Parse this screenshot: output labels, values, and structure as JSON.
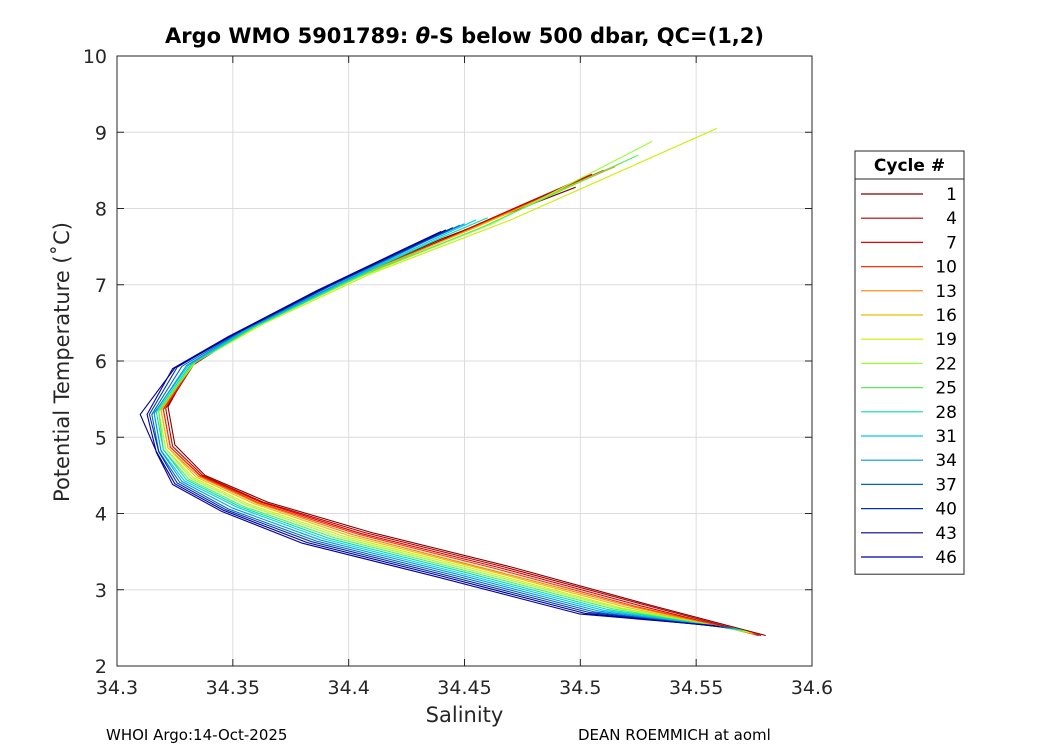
{
  "chart_data": {
    "type": "line",
    "title_prefix": "Argo WMO 5901789: ",
    "title_theta": "θ",
    "title_suffix": "-S below 500 dbar,  QC=(1,2)",
    "xlabel": "Salinity",
    "ylabel": "Potential Temperature (˚C)",
    "xlim": [
      34.3,
      34.6
    ],
    "ylim": [
      2,
      10
    ],
    "x_ticks": [
      "34.3",
      "34.35",
      "34.4",
      "34.45",
      "34.5",
      "34.55",
      "34.6"
    ],
    "y_ticks": [
      "2",
      "3",
      "4",
      "5",
      "6",
      "7",
      "8",
      "9",
      "10"
    ],
    "grid": true,
    "legend_title": "Cycle #",
    "legend_position": "outside-right",
    "series": [
      {
        "name": "1",
        "color": "#800000",
        "x": [
          34.498,
          34.44,
          34.395,
          34.355,
          34.332,
          34.322,
          34.325,
          34.338,
          34.365,
          34.41,
          34.47,
          34.53,
          34.58
        ],
        "y": [
          8.28,
          7.6,
          7.0,
          6.4,
          5.95,
          5.4,
          4.9,
          4.5,
          4.15,
          3.75,
          3.3,
          2.8,
          2.4
        ]
      },
      {
        "name": "4",
        "color": "#b30000",
        "x": [
          34.505,
          34.445,
          34.398,
          34.357,
          34.333,
          34.321,
          34.324,
          34.337,
          34.363,
          34.407,
          34.467,
          34.528,
          34.578
        ],
        "y": [
          8.45,
          7.65,
          7.02,
          6.42,
          5.95,
          5.38,
          4.88,
          4.5,
          4.15,
          3.75,
          3.3,
          2.8,
          2.4
        ]
      },
      {
        "name": "7",
        "color": "#e60000",
        "x": [
          34.51,
          34.448,
          34.4,
          34.358,
          34.333,
          34.32,
          34.323,
          34.336,
          34.362,
          34.405,
          34.465,
          34.526,
          34.577
        ],
        "y": [
          8.5,
          7.68,
          7.05,
          6.44,
          5.96,
          5.37,
          4.87,
          4.5,
          4.15,
          3.74,
          3.29,
          2.79,
          2.4
        ]
      },
      {
        "name": "10",
        "color": "#ff3300",
        "x": [
          34.512,
          34.45,
          34.401,
          34.359,
          34.333,
          34.32,
          34.323,
          34.336,
          34.361,
          34.404,
          34.463,
          34.524,
          34.576
        ],
        "y": [
          8.52,
          7.7,
          7.06,
          6.45,
          5.96,
          5.36,
          4.87,
          4.49,
          4.14,
          3.73,
          3.28,
          2.78,
          2.41
        ]
      },
      {
        "name": "13",
        "color": "#ff8000",
        "x": [
          34.515,
          34.452,
          34.402,
          34.36,
          34.333,
          34.319,
          34.322,
          34.335,
          34.36,
          34.402,
          34.46,
          34.522,
          34.575
        ],
        "y": [
          8.55,
          7.72,
          7.08,
          6.46,
          5.97,
          5.36,
          4.86,
          4.49,
          4.14,
          3.72,
          3.27,
          2.78,
          2.42
        ]
      },
      {
        "name": "16",
        "color": "#e6c000",
        "x": [
          34.518,
          34.454,
          34.403,
          34.361,
          34.333,
          34.319,
          34.322,
          34.334,
          34.359,
          34.4,
          34.458,
          34.52,
          34.574
        ],
        "y": [
          8.6,
          7.74,
          7.1,
          6.48,
          5.98,
          5.35,
          4.86,
          4.48,
          4.13,
          3.71,
          3.27,
          2.77,
          2.43
        ]
      },
      {
        "name": "19",
        "color": "#ccee00",
        "x": [
          34.559,
          34.47,
          34.41,
          34.364,
          34.334,
          34.318,
          34.321,
          34.333,
          34.357,
          34.398,
          34.456,
          34.518,
          34.573
        ],
        "y": [
          9.05,
          7.85,
          7.15,
          6.5,
          5.99,
          5.35,
          4.85,
          4.47,
          4.12,
          3.7,
          3.26,
          2.76,
          2.44
        ]
      },
      {
        "name": "22",
        "color": "#99ff33",
        "x": [
          34.531,
          34.462,
          34.406,
          34.362,
          34.333,
          34.318,
          34.321,
          34.332,
          34.356,
          34.396,
          34.454,
          34.516,
          34.572
        ],
        "y": [
          8.88,
          7.8,
          7.12,
          6.49,
          5.98,
          5.34,
          4.85,
          4.46,
          4.11,
          3.69,
          3.25,
          2.76,
          2.45
        ]
      },
      {
        "name": "25",
        "color": "#55ee55",
        "x": [
          34.525,
          34.458,
          34.404,
          34.361,
          34.333,
          34.318,
          34.32,
          34.331,
          34.354,
          34.394,
          34.452,
          34.514,
          34.571
        ],
        "y": [
          8.7,
          7.76,
          7.1,
          6.47,
          5.97,
          5.34,
          4.84,
          4.45,
          4.1,
          3.68,
          3.24,
          2.75,
          2.46
        ]
      },
      {
        "name": "28",
        "color": "#00e0a0",
        "x": [
          34.46,
          34.44,
          34.398,
          34.358,
          34.332,
          34.317,
          34.32,
          34.33,
          34.353,
          34.392,
          34.45,
          34.512,
          34.57
        ],
        "y": [
          7.88,
          7.62,
          7.03,
          6.43,
          5.96,
          5.33,
          4.84,
          4.44,
          4.09,
          3.67,
          3.23,
          2.74,
          2.47
        ]
      },
      {
        "name": "31",
        "color": "#00c8f0",
        "x": [
          34.455,
          34.437,
          34.396,
          34.356,
          34.331,
          34.316,
          34.319,
          34.329,
          34.352,
          34.39,
          34.448,
          34.51,
          34.568
        ],
        "y": [
          7.85,
          7.6,
          7.01,
          6.41,
          5.95,
          5.32,
          4.83,
          4.43,
          4.08,
          3.66,
          3.22,
          2.73,
          2.48
        ]
      },
      {
        "name": "34",
        "color": "#0099e0",
        "x": [
          34.45,
          34.434,
          34.394,
          34.354,
          34.33,
          34.316,
          34.319,
          34.328,
          34.35,
          34.388,
          34.446,
          34.508,
          34.566
        ],
        "y": [
          7.8,
          7.58,
          6.99,
          6.39,
          5.94,
          5.31,
          4.82,
          4.42,
          4.07,
          3.65,
          3.21,
          2.72,
          2.49
        ]
      },
      {
        "name": "37",
        "color": "#0066cc",
        "x": [
          34.448,
          34.432,
          34.392,
          34.353,
          34.328,
          34.315,
          34.318,
          34.327,
          34.348,
          34.386,
          34.444,
          34.506,
          34.564
        ],
        "y": [
          7.78,
          7.56,
          6.98,
          6.38,
          5.93,
          5.3,
          4.82,
          4.41,
          4.06,
          3.64,
          3.2,
          2.71,
          2.5
        ]
      },
      {
        "name": "40",
        "color": "#0033aa",
        "x": [
          34.445,
          34.43,
          34.39,
          34.351,
          34.326,
          34.314,
          34.318,
          34.326,
          34.347,
          34.384,
          34.442,
          34.504,
          34.562
        ],
        "y": [
          7.75,
          7.54,
          6.96,
          6.36,
          5.92,
          5.3,
          4.81,
          4.4,
          4.05,
          3.63,
          3.19,
          2.7,
          2.51
        ]
      },
      {
        "name": "43",
        "color": "#000088",
        "x": [
          34.442,
          34.428,
          34.388,
          34.35,
          34.325,
          34.31,
          34.317,
          34.325,
          34.346,
          34.382,
          34.44,
          34.502,
          34.56
        ],
        "y": [
          7.72,
          7.52,
          6.94,
          6.34,
          5.91,
          5.3,
          4.81,
          4.39,
          4.04,
          3.62,
          3.18,
          2.69,
          2.52
        ]
      },
      {
        "name": "46",
        "color": "#0000aa",
        "x": [
          34.44,
          34.426,
          34.386,
          34.348,
          34.324,
          34.313,
          34.317,
          34.324,
          34.345,
          34.38,
          34.438,
          34.5,
          34.558
        ],
        "y": [
          7.7,
          7.5,
          6.92,
          6.32,
          5.9,
          5.3,
          4.8,
          4.38,
          4.03,
          3.61,
          3.17,
          2.68,
          2.53
        ]
      }
    ]
  },
  "footer": {
    "left": "WHOI Argo:14-Oct-2025",
    "right": "DEAN ROEMMICH at aoml"
  }
}
